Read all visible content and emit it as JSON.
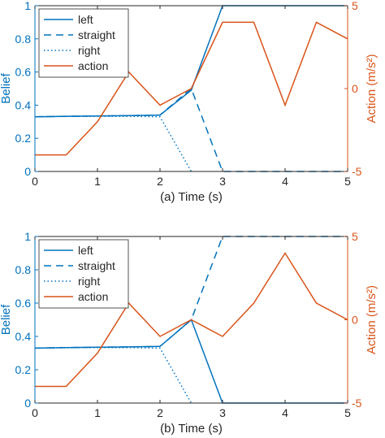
{
  "chart_data": [
    {
      "type": "line",
      "caption": "(a) Time (s)",
      "xlabel": "(a) Time (s)",
      "ylabel_left": "Belief",
      "ylabel_right": "Action (m/s²)",
      "xlim": [
        0,
        5
      ],
      "ylim_left": [
        0,
        1
      ],
      "ylim_right": [
        -5,
        5
      ],
      "x_ticks": [
        "0",
        "1",
        "2",
        "3",
        "4",
        "5"
      ],
      "y_ticks_left": [
        "0",
        "0.2",
        "0.4",
        "0.6",
        "0.8",
        "1"
      ],
      "y_ticks_right": [
        "-5",
        "0",
        "5"
      ],
      "legend_position": "top-left",
      "series": [
        {
          "name": "left",
          "axis": "left",
          "style": "solid",
          "color": "#0072BD",
          "x": [
            0,
            0.5,
            1,
            1.5,
            2,
            2.5,
            3,
            3.5,
            4,
            4.5,
            5
          ],
          "y": [
            0.33,
            0.333,
            0.335,
            0.337,
            0.34,
            0.49,
            1,
            1,
            1,
            1,
            1
          ]
        },
        {
          "name": "straight",
          "axis": "left",
          "style": "dashed",
          "color": "#0072BD",
          "x": [
            0,
            0.5,
            1,
            1.5,
            2,
            2.5,
            3,
            3.5,
            4,
            4.5,
            5
          ],
          "y": [
            0.33,
            0.333,
            0.335,
            0.337,
            0.34,
            0.5,
            0,
            0,
            0,
            0,
            0
          ]
        },
        {
          "name": "right",
          "axis": "left",
          "style": "dotted",
          "color": "#0072BD",
          "x": [
            0,
            0.5,
            1,
            1.5,
            2,
            2.5
          ],
          "y": [
            0.33,
            0.332,
            0.333,
            0.333,
            0.33,
            0
          ]
        },
        {
          "name": "action",
          "axis": "right",
          "style": "solid",
          "color": "#D95319",
          "x": [
            0,
            0.5,
            1,
            1.5,
            2,
            2.5,
            3,
            3.5,
            4,
            4.5,
            5
          ],
          "y": [
            -4,
            -4,
            -2,
            1,
            -1,
            0,
            4,
            4,
            -1,
            4,
            3
          ]
        }
      ]
    },
    {
      "type": "line",
      "caption": "(b) Time (s)",
      "xlabel": "(b) Time (s)",
      "ylabel_left": "Belief",
      "ylabel_right": "Action (m/s²)",
      "xlim": [
        0,
        5
      ],
      "ylim_left": [
        0,
        1
      ],
      "ylim_right": [
        -5,
        5
      ],
      "x_ticks": [
        "0",
        "1",
        "2",
        "3",
        "4",
        "5"
      ],
      "y_ticks_left": [
        "0",
        "0.2",
        "0.4",
        "0.6",
        "0.8",
        "1"
      ],
      "y_ticks_right": [
        "-5",
        "0",
        "5"
      ],
      "legend_position": "top-left",
      "series": [
        {
          "name": "left",
          "axis": "left",
          "style": "solid",
          "color": "#0072BD",
          "x": [
            0,
            0.5,
            1,
            1.5,
            2,
            2.5,
            3,
            3.5,
            4,
            4.5,
            5
          ],
          "y": [
            0.33,
            0.333,
            0.335,
            0.337,
            0.34,
            0.5,
            0,
            0,
            0,
            0,
            0
          ]
        },
        {
          "name": "straight",
          "axis": "left",
          "style": "dashed",
          "color": "#0072BD",
          "x": [
            0,
            0.5,
            1,
            1.5,
            2,
            2.5,
            3,
            3.5,
            4,
            4.5,
            5
          ],
          "y": [
            0.33,
            0.333,
            0.335,
            0.337,
            0.34,
            0.5,
            1,
            1,
            1,
            1,
            1
          ]
        },
        {
          "name": "right",
          "axis": "left",
          "style": "dotted",
          "color": "#0072BD",
          "x": [
            0,
            0.5,
            1,
            1.5,
            2,
            2.5
          ],
          "y": [
            0.33,
            0.332,
            0.333,
            0.333,
            0.33,
            0
          ]
        },
        {
          "name": "action",
          "axis": "right",
          "style": "solid",
          "color": "#D95319",
          "x": [
            0,
            0.5,
            1,
            1.5,
            2,
            2.5,
            3,
            3.5,
            4,
            4.5,
            5
          ],
          "y": [
            -4,
            -4,
            -2,
            1,
            -1,
            0,
            -1,
            1,
            4,
            1,
            0
          ]
        }
      ]
    }
  ]
}
